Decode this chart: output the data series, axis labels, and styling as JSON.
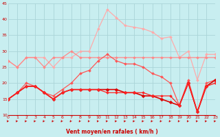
{
  "x": [
    0,
    1,
    2,
    3,
    4,
    5,
    6,
    7,
    8,
    9,
    10,
    11,
    12,
    13,
    14,
    15,
    16,
    17,
    18,
    19,
    20,
    21,
    22,
    23
  ],
  "series": [
    {
      "color": "#ffaaaa",
      "linewidth": 0.9,
      "marker": "D",
      "markersize": 2.0,
      "y": [
        27,
        25,
        28,
        28,
        28,
        25,
        28,
        28,
        30,
        30,
        37,
        43,
        40.5,
        38,
        37.5,
        37,
        36,
        34,
        34.5,
        28,
        30,
        21,
        29,
        29
      ]
    },
    {
      "color": "#ff8888",
      "linewidth": 0.9,
      "marker": "D",
      "markersize": 2.0,
      "y": [
        27,
        25,
        28,
        28,
        25,
        28,
        28,
        30,
        28,
        28,
        28,
        28,
        28,
        28,
        28,
        28,
        28,
        28,
        28,
        28,
        28,
        28,
        28,
        28
      ]
    },
    {
      "color": "#ff5555",
      "linewidth": 0.9,
      "marker": "D",
      "markersize": 2.0,
      "y": [
        15,
        17,
        20,
        19,
        17,
        16,
        18,
        20,
        23,
        24,
        27,
        29,
        27,
        26,
        26,
        25,
        23,
        22,
        20,
        13,
        21,
        11,
        20,
        21
      ]
    },
    {
      "color": "#dd0000",
      "linewidth": 1.2,
      "marker": "D",
      "markersize": 2.5,
      "y": [
        15,
        17,
        19,
        19,
        17,
        15,
        17,
        18,
        18,
        18,
        18,
        18,
        18,
        17,
        17,
        16,
        16,
        15,
        14,
        13,
        20,
        11,
        19,
        21
      ]
    },
    {
      "color": "#ff2222",
      "linewidth": 0.9,
      "marker": "D",
      "markersize": 2.0,
      "y": [
        15,
        17,
        19,
        19,
        17,
        15,
        17,
        18,
        18,
        18,
        18,
        17,
        17,
        17,
        17,
        17,
        16,
        16,
        16,
        13,
        20,
        11,
        19,
        20
      ]
    }
  ],
  "xlabel": "Vent moyen/en rafales ( km/h )",
  "xlim": [
    0,
    23
  ],
  "ylim": [
    10,
    45
  ],
  "yticks": [
    10,
    15,
    20,
    25,
    30,
    35,
    40,
    45
  ],
  "xticks": [
    0,
    1,
    2,
    3,
    4,
    5,
    6,
    7,
    8,
    9,
    10,
    11,
    12,
    13,
    14,
    15,
    16,
    17,
    18,
    19,
    20,
    21,
    22,
    23
  ],
  "bg_color": "#c8eef0",
  "grid_color": "#aad4d8",
  "xlabel_color": "#cc0000",
  "tick_color": "#cc0000",
  "arrow_color": "#cc0000",
  "spine_color": "#cc0000"
}
